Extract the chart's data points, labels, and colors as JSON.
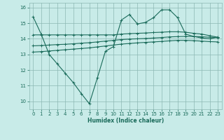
{
  "xlabel": "Humidex (Indice chaleur)",
  "ylabel": "",
  "bg_color": "#c8ebe8",
  "grid_color": "#8cb8b4",
  "line_color": "#1a6b5a",
  "xlim": [
    -0.5,
    23.5
  ],
  "ylim": [
    9.5,
    16.3
  ],
  "yticks": [
    10,
    11,
    12,
    13,
    14,
    15,
    16
  ],
  "xticks": [
    0,
    1,
    2,
    3,
    4,
    5,
    6,
    7,
    8,
    9,
    10,
    11,
    12,
    13,
    14,
    15,
    16,
    17,
    18,
    19,
    20,
    21,
    22,
    23
  ],
  "line1": [
    15.4,
    14.3,
    13.0,
    12.4,
    11.8,
    11.2,
    10.5,
    9.85,
    11.5,
    13.2,
    13.5,
    15.2,
    15.55,
    14.95,
    15.05,
    15.35,
    15.85,
    15.85,
    15.35,
    14.3,
    14.15,
    14.05,
    14.0,
    14.1
  ],
  "line2": [
    14.25,
    14.25,
    14.25,
    14.25,
    14.25,
    14.25,
    14.25,
    14.25,
    14.25,
    14.25,
    14.25,
    14.3,
    14.33,
    14.35,
    14.37,
    14.4,
    14.42,
    14.45,
    14.45,
    14.42,
    14.35,
    14.3,
    14.2,
    14.1
  ],
  "line3": [
    13.55,
    13.57,
    13.6,
    13.63,
    13.65,
    13.68,
    13.72,
    13.75,
    13.8,
    13.85,
    13.9,
    13.95,
    13.98,
    14.0,
    14.02,
    14.05,
    14.08,
    14.12,
    14.14,
    14.15,
    14.15,
    14.13,
    14.1,
    14.08
  ],
  "line4": [
    13.15,
    13.18,
    13.22,
    13.26,
    13.3,
    13.34,
    13.38,
    13.42,
    13.48,
    13.54,
    13.6,
    13.66,
    13.7,
    13.74,
    13.77,
    13.8,
    13.83,
    13.87,
    13.9,
    13.9,
    13.88,
    13.85,
    13.82,
    13.8
  ]
}
